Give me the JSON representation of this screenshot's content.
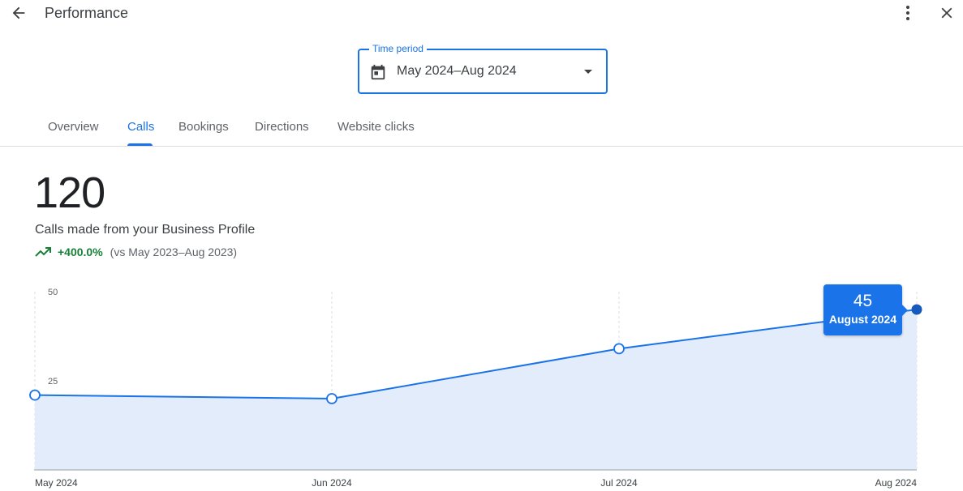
{
  "header": {
    "title": "Performance",
    "back_icon": "arrow-back-icon",
    "more_icon": "more-vert-icon",
    "close_icon": "close-icon"
  },
  "time_period": {
    "label": "Time period",
    "value": "May 2024–Aug 2024",
    "icon": "calendar-icon"
  },
  "tabs": [
    {
      "label": "Overview",
      "active": false
    },
    {
      "label": "Calls",
      "active": true
    },
    {
      "label": "Bookings",
      "active": false
    },
    {
      "label": "Directions",
      "active": false
    },
    {
      "label": "Website clicks",
      "active": false
    }
  ],
  "metric": {
    "total": "120",
    "description": "Calls made from your Business Profile",
    "change": "+400.0%",
    "comparison": "(vs May 2023–Aug 2023)",
    "trend_icon": "trending-up-icon"
  },
  "tooltip": {
    "value": "45",
    "label": "August 2024"
  },
  "colors": {
    "accent": "#1a73e8",
    "positive": "#188038",
    "area_fill": "#e3ecfb"
  },
  "chart_data": {
    "type": "area",
    "x": [
      "May 2024",
      "Jun 2024",
      "Jul 2024",
      "Aug 2024"
    ],
    "series": [
      {
        "values": [
          21,
          20,
          34,
          45
        ]
      }
    ],
    "yticks": [
      25,
      50
    ],
    "ylim": [
      0,
      50
    ],
    "grid": "vertical dashed",
    "highlighted_index": 3
  }
}
